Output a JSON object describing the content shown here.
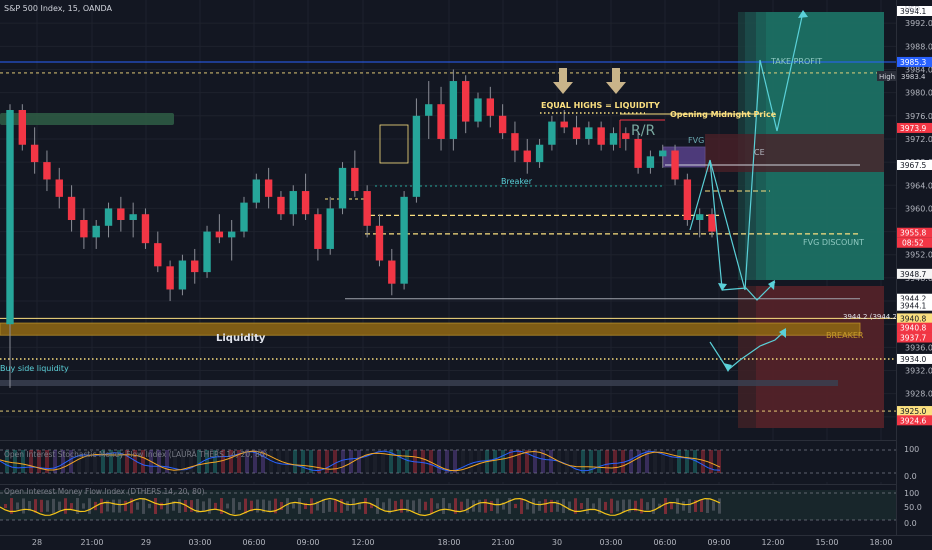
{
  "header": {
    "title": "S&P 500 Index, 15, OANDA"
  },
  "chart_data": {
    "type": "candlestick",
    "title": "S&P 500 Index, 15, OANDA",
    "currency": "USD",
    "ylim": [
      3920,
      3996
    ],
    "y_ticks": [
      3924,
      3928,
      3932,
      3936,
      3940,
      3944,
      3948,
      3952,
      3956,
      3960,
      3964,
      3968,
      3972,
      3976,
      3980,
      3984,
      3988,
      3992
    ],
    "x_ticks": [
      "28",
      "21:00",
      "29",
      "03:00",
      "06:00",
      "09:00",
      "12:00",
      "18:00",
      "21:00",
      "30",
      "03:00",
      "06:00",
      "09:00",
      "12:00",
      "15:00",
      "18:00"
    ],
    "price_tags": [
      {
        "value": "3994.1",
        "price": 3994.1,
        "bg": "#ffffff",
        "fg": "#131722"
      },
      {
        "value": "3985.3",
        "price": 3985.3,
        "bg": "#2962ff",
        "fg": "#ffffff"
      },
      {
        "value": "3973.9",
        "price": 3973.9,
        "bg": "#f23645",
        "fg": "#ffffff"
      },
      {
        "value": "3967.5",
        "price": 3967.5,
        "bg": "#ffffff",
        "fg": "#131722"
      },
      {
        "value": "3955.8",
        "price": 3955.8,
        "bg": "#f23645",
        "fg": "#ffffff"
      },
      {
        "value": "3948.7",
        "price": 3948.7,
        "bg": "#f5f5f5",
        "fg": "#131722"
      },
      {
        "value": "3944.2",
        "price": 3944.4,
        "bg": "#ffffff",
        "fg": "#131722"
      },
      {
        "value": "3944.1",
        "price": 3943.2,
        "bg": "#ffffff",
        "fg": "#131722"
      },
      {
        "value": "3940.8",
        "price": 3941.0,
        "bg": "#fbe080",
        "fg": "#131722"
      },
      {
        "value": "3940.8",
        "price": 3939.4,
        "bg": "#f23645",
        "fg": "#ffffff"
      },
      {
        "value": "3937.7",
        "price": 3937.7,
        "bg": "#f23645",
        "fg": "#ffffff"
      },
      {
        "value": "3934.0",
        "price": 3934.0,
        "bg": "#ffffff",
        "fg": "#131722"
      },
      {
        "value": "3925.0",
        "price": 3925.0,
        "bg": "#fbe080",
        "fg": "#131722"
      },
      {
        "value": "3924.6",
        "price": 3923.4,
        "bg": "#f23645",
        "fg": "#ffffff"
      }
    ],
    "countdown": "08:52",
    "high_label": "High",
    "high_value": "3983.4",
    "high_price": 3983.4,
    "annotations": {
      "equal_highs": "EQUAL HIGHS = LIQUIDITY",
      "opening_midnight": "Opening Midnight Price",
      "rr": "R/R",
      "fvg": "FVG",
      "ce": "CE",
      "breaker_small": "Breaker",
      "fvg_discount": "FVG DISCOUNT",
      "take_profit": "TAKE PROFIT",
      "liquidity": "Liquidity",
      "breaker": "BREAKER",
      "sell_side": "Buy side liquidity",
      "small_tag": "3944.2 (3944.2)"
    },
    "key_levels": {
      "blue_line": 3985.3,
      "high_dashed": 3983.4,
      "midnight": 3976.3,
      "ce_level": 3967.5,
      "fvg_top": 3958.8,
      "fvg_bottom": 3955.6,
      "gray_level": 3944.4,
      "liquidity_line": 3941.0,
      "breaker_top": 3940.2,
      "breaker_bottom": 3938.1,
      "ssl": 3934.0,
      "bottom_zone": 3925.0
    },
    "candles": [
      [
        3940,
        3978,
        3929,
        3977
      ],
      [
        3977,
        3978,
        3970,
        3971
      ],
      [
        3971,
        3974,
        3966,
        3968
      ],
      [
        3968,
        3970,
        3963,
        3965
      ],
      [
        3965,
        3967,
        3960,
        3962
      ],
      [
        3962,
        3964,
        3956,
        3958
      ],
      [
        3958,
        3960,
        3953,
        3955
      ],
      [
        3955,
        3958,
        3953,
        3957
      ],
      [
        3957,
        3961,
        3955,
        3960
      ],
      [
        3960,
        3962,
        3956,
        3958
      ],
      [
        3958,
        3961,
        3955,
        3959
      ],
      [
        3959,
        3960,
        3953,
        3954
      ],
      [
        3954,
        3956,
        3949,
        3950
      ],
      [
        3950,
        3951,
        3944,
        3946
      ],
      [
        3946,
        3952,
        3945,
        3951
      ],
      [
        3951,
        3953,
        3947,
        3949
      ],
      [
        3949,
        3957,
        3948,
        3956
      ],
      [
        3956,
        3959,
        3954,
        3955
      ],
      [
        3955,
        3958,
        3951,
        3956
      ],
      [
        3956,
        3962,
        3955,
        3961
      ],
      [
        3961,
        3966,
        3960,
        3965
      ],
      [
        3965,
        3967,
        3960,
        3962
      ],
      [
        3962,
        3963,
        3958,
        3959
      ],
      [
        3959,
        3964,
        3957,
        3963
      ],
      [
        3963,
        3966,
        3958,
        3959
      ],
      [
        3959,
        3960,
        3951,
        3953
      ],
      [
        3953,
        3962,
        3952,
        3960
      ],
      [
        3960,
        3968,
        3959,
        3967
      ],
      [
        3967,
        3970,
        3962,
        3963
      ],
      [
        3963,
        3964,
        3955,
        3957
      ],
      [
        3957,
        3959,
        3950,
        3951
      ],
      [
        3951,
        3953,
        3945,
        3947
      ],
      [
        3947,
        3963,
        3946,
        3962
      ],
      [
        3962,
        3979,
        3961,
        3976
      ],
      [
        3976,
        3982,
        3972,
        3978
      ],
      [
        3978,
        3981,
        3970,
        3972
      ],
      [
        3972,
        3984,
        3970,
        3982
      ],
      [
        3982,
        3983,
        3973,
        3975
      ],
      [
        3975,
        3980,
        3974,
        3979
      ],
      [
        3979,
        3981,
        3974,
        3976
      ],
      [
        3976,
        3978,
        3972,
        3973
      ],
      [
        3973,
        3975,
        3968,
        3970
      ],
      [
        3970,
        3972,
        3966,
        3968
      ],
      [
        3968,
        3972,
        3967,
        3971
      ],
      [
        3971,
        3976,
        3970,
        3975
      ],
      [
        3975,
        3977,
        3973,
        3974
      ],
      [
        3974,
        3976,
        3971,
        3972
      ],
      [
        3972,
        3975,
        3971,
        3974
      ],
      [
        3974,
        3975,
        3970,
        3971
      ],
      [
        3971,
        3974,
        3970,
        3973
      ],
      [
        3973,
        3974,
        3970,
        3972
      ],
      [
        3972,
        3973,
        3966,
        3967
      ],
      [
        3967,
        3970,
        3966,
        3969
      ],
      [
        3969,
        3971,
        3967,
        3970
      ],
      [
        3970,
        3971,
        3964,
        3965
      ],
      [
        3965,
        3966,
        3957,
        3958
      ],
      [
        3958,
        3960,
        3955,
        3959
      ],
      [
        3959,
        3960,
        3955,
        3956
      ]
    ],
    "indicators": [
      {
        "name": "Open Interest Stochastic Money Flow Index (LAURA THERS 14, 20, 80)",
        "y_ticks": [
          "100",
          "0.0"
        ]
      },
      {
        "name": "Open Interest Money Flow Index (DTHERS 14, 20, 80)",
        "y_ticks": [
          "100",
          "50.0",
          "0.0"
        ]
      }
    ]
  },
  "colors": {
    "bg": "#131722",
    "up": "#26a69a",
    "down": "#f23645",
    "wick": "#8a8d96",
    "yellow": "#fbe080",
    "blue": "#2962ff",
    "teal": "#26a69a"
  }
}
